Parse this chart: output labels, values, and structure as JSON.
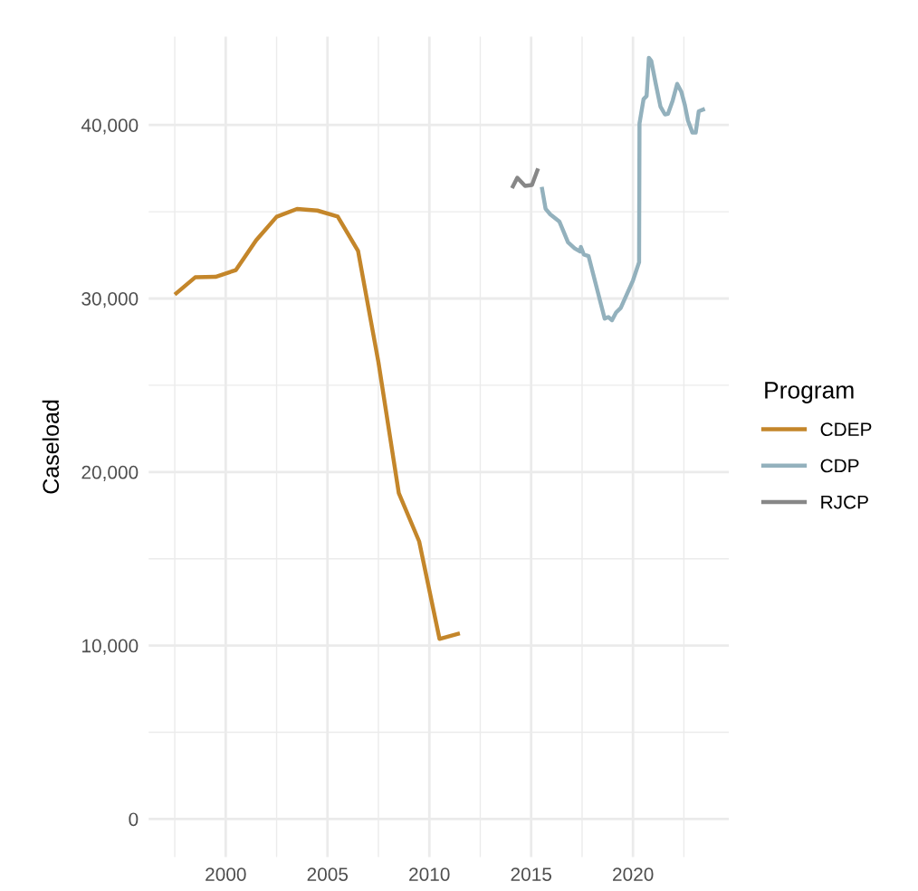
{
  "chart_data": {
    "type": "line",
    "ylabel": "Caseload",
    "legend_title": "Program",
    "legend": "right",
    "grid": true,
    "line_style": "solid",
    "marker": "none",
    "xlim": [
      1996.22,
      2024.71
    ],
    "xticks": [
      2000,
      2005,
      2010,
      2015,
      2020
    ],
    "ylim": [
      -2200,
      45100
    ],
    "yticks": [
      {
        "value": 0,
        "label": "0"
      },
      {
        "value": 10000,
        "label": "10,000"
      },
      {
        "value": 20000,
        "label": "20,000"
      },
      {
        "value": 30000,
        "label": "30,000"
      },
      {
        "value": 40000,
        "label": "40,000"
      }
    ],
    "series": [
      {
        "name": "CDEP",
        "color": "#c4862a",
        "x": [
          1997.5,
          1998.5,
          1999.5,
          2000.5,
          2001.5,
          2002.5,
          2003.5,
          2004.5,
          2005.5,
          2006.5,
          2007.5,
          2008.5,
          2009.5,
          2010.5,
          2011.5
        ],
        "values": [
          30230,
          31220,
          31250,
          31640,
          33360,
          34710,
          35160,
          35070,
          34730,
          32740,
          26330,
          18780,
          16000,
          10380,
          10700
        ]
      },
      {
        "name": "CDP",
        "color": "#93b1bd",
        "x": [
          2015.52,
          2015.71,
          2015.94,
          2016.39,
          2016.81,
          2017.14,
          2017.41,
          2017.44,
          2017.59,
          2017.82,
          2018.61,
          2018.79,
          2018.97,
          2019.17,
          2019.4,
          2020.0,
          2020.3,
          2020.32,
          2020.52,
          2020.67,
          2020.78,
          2020.9,
          2021.12,
          2021.35,
          2021.57,
          2021.72,
          2021.95,
          2022.17,
          2022.37,
          2022.55,
          2022.7,
          2022.92,
          2023.08,
          2023.23,
          2023.53
        ],
        "values": [
          36430,
          35170,
          34850,
          34430,
          33240,
          32890,
          32710,
          32970,
          32530,
          32440,
          28840,
          28930,
          28750,
          29190,
          29460,
          31040,
          32090,
          40090,
          41490,
          41670,
          43870,
          43690,
          42370,
          41060,
          40610,
          40650,
          41410,
          42370,
          41930,
          41140,
          40260,
          39560,
          39560,
          40790,
          40930
        ]
      },
      {
        "name": "RJCP",
        "color": "#878787",
        "x": [
          2014.06,
          2014.32,
          2014.7,
          2015.04,
          2015.34
        ],
        "values": [
          36360,
          36960,
          36490,
          36540,
          37490
        ]
      }
    ]
  }
}
